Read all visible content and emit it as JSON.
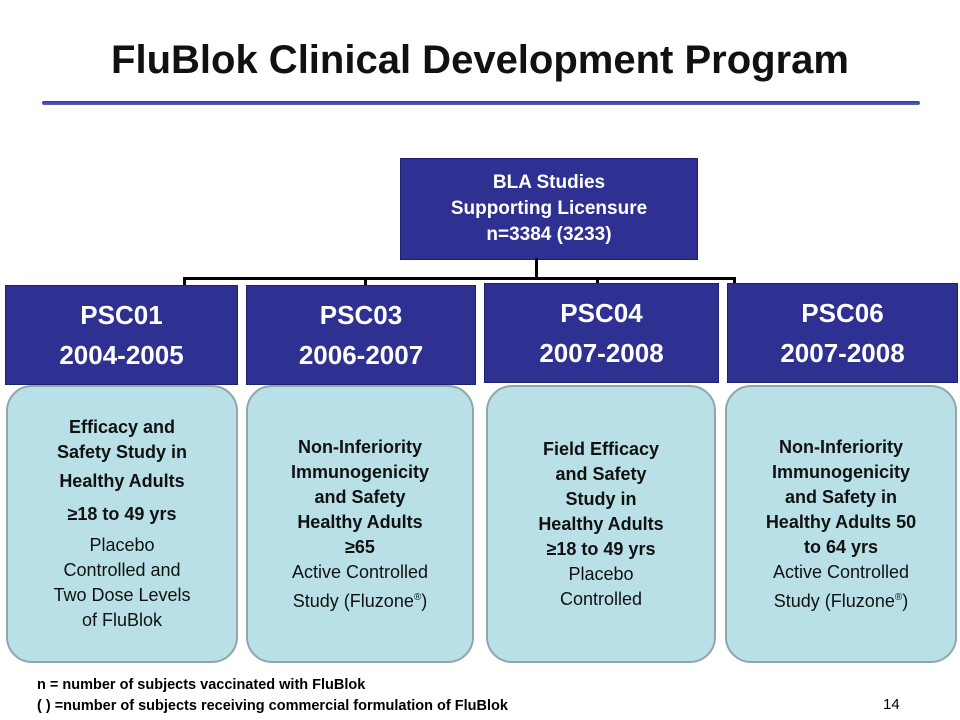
{
  "title": "FluBlok Clinical Development Program",
  "root": {
    "line1": "BLA Studies",
    "line2": "Supporting Licensure",
    "line3": "n=3384 (3233)"
  },
  "studies": [
    {
      "code": "PSC01",
      "years": "2004-2005",
      "bold_lines": [
        "Efficacy and",
        "Safety Study in",
        "Healthy Adults",
        "≥18 to 49 yrs"
      ],
      "normal_lines": [
        "Placebo",
        "Controlled and",
        "Two Dose Levels",
        "of FluBlok"
      ]
    },
    {
      "code": "PSC03",
      "years": "2006-2007",
      "bold_lines": [
        "Non-Inferiority",
        "Immunogenicity",
        "and Safety",
        "Healthy Adults",
        "≥65"
      ],
      "normal_lines": [
        "Active Controlled",
        "Study (Fluzone"
      ],
      "mark": "®",
      "mark_suffix": ")"
    },
    {
      "code": "PSC04",
      "years": "2007-2008",
      "bold_lines": [
        "Field Efficacy",
        "and Safety",
        "Study in",
        "Healthy Adults",
        "≥18 to 49 yrs"
      ],
      "normal_lines": [
        "Placebo",
        "Controlled"
      ]
    },
    {
      "code": "PSC06",
      "years": "2007-2008",
      "bold_lines": [
        "Non-Inferiority",
        "Immunogenicity",
        "and Safety in",
        "Healthy Adults 50",
        "to 64 yrs"
      ],
      "normal_lines": [
        "Active Controlled",
        "Study (Fluzone"
      ],
      "mark": "®",
      "mark_suffix": ")"
    }
  ],
  "footnotes": {
    "n_def": "n =  number of subjects vaccinated with FluBlok",
    "paren_def": "( ) =number of subjects receiving commercial formulation of FluBlok"
  },
  "page_number": "14",
  "colors": {
    "header_box": "#2e3192",
    "study_box": "#b9e0e6",
    "study_border": "#8fa6aa",
    "rule": "#2e3a9e"
  }
}
